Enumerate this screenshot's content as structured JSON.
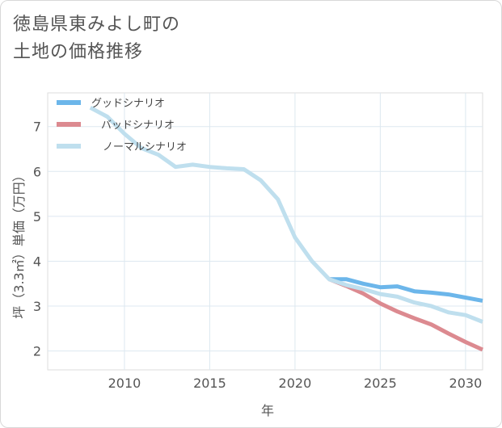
{
  "title_lines": [
    "徳島県東みよし町の",
    "土地の価格推移"
  ],
  "chart_data": {
    "type": "line",
    "title": "徳島県東みよし町の土地の価格推移",
    "xlabel": "年",
    "ylabel": "坪（3.3㎡）単価（万円）",
    "xlim": [
      2005.5,
      2031
    ],
    "ylim": [
      1.58,
      7.75
    ],
    "x_ticks": [
      2010,
      2015,
      2020,
      2025,
      2030
    ],
    "y_ticks": [
      2,
      3,
      4,
      5,
      6,
      7
    ],
    "grid": true,
    "legend_position": "top-left",
    "series": [
      {
        "name": "グッドシナリオ",
        "color": "#6cb6ea",
        "x": [
          2022,
          2023,
          2024,
          2025,
          2026,
          2027,
          2028,
          2029,
          2030,
          2031
        ],
        "values": [
          3.6,
          3.6,
          3.5,
          3.42,
          3.44,
          3.33,
          3.3,
          3.26,
          3.19,
          3.12
        ]
      },
      {
        "name": "バッドシナリオ",
        "color": "#dc8a90",
        "x": [
          2022,
          2023,
          2024,
          2025,
          2026,
          2027,
          2028,
          2029,
          2030,
          2031
        ],
        "values": [
          3.6,
          3.45,
          3.28,
          3.06,
          2.88,
          2.73,
          2.59,
          2.39,
          2.2,
          2.03
        ]
      },
      {
        "name": "ノーマルシナリオ",
        "color": "#bfdfee",
        "x": [
          2008,
          2009,
          2010,
          2011,
          2012,
          2013,
          2014,
          2015,
          2016,
          2017,
          2018,
          2019,
          2020,
          2021,
          2022,
          2023,
          2024,
          2025,
          2026,
          2027,
          2028,
          2029,
          2030,
          2031
        ],
        "values": [
          7.42,
          7.22,
          6.84,
          6.52,
          6.37,
          6.1,
          6.15,
          6.1,
          6.07,
          6.05,
          5.8,
          5.38,
          4.53,
          4.0,
          3.6,
          3.47,
          3.38,
          3.27,
          3.21,
          3.08,
          3.0,
          2.86,
          2.8,
          2.65
        ]
      }
    ]
  }
}
